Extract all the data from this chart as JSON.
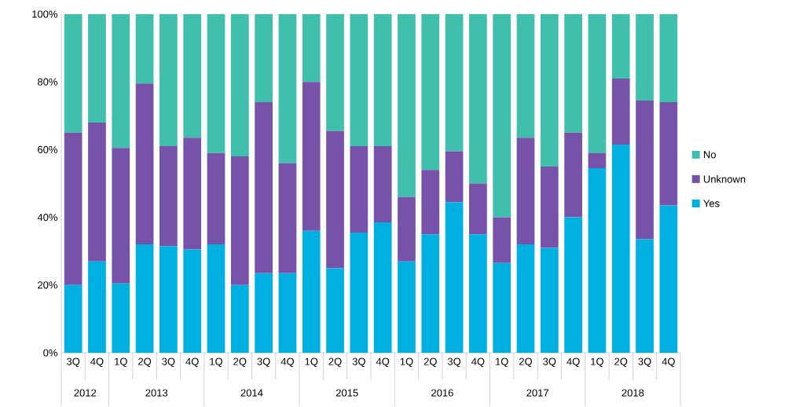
{
  "chart_data": {
    "type": "bar",
    "stacked": true,
    "legend": "right",
    "categories": [
      "3Q",
      "4Q",
      "1Q",
      "2Q",
      "3Q",
      "4Q",
      "1Q",
      "2Q",
      "3Q",
      "4Q",
      "1Q",
      "2Q",
      "3Q",
      "4Q",
      "1Q",
      "2Q",
      "3Q",
      "4Q",
      "1Q",
      "2Q",
      "3Q",
      "4Q",
      "1Q",
      "2Q",
      "3Q",
      "4Q"
    ],
    "annotations": [
      "2012",
      "2013",
      "2014",
      "2015",
      "2016",
      "2017",
      "2018"
    ],
    "ylim": [
      0,
      100
    ],
    "yticks": [
      {
        "value": 0,
        "label": "0%"
      },
      {
        "value": 20,
        "label": "20%"
      },
      {
        "value": 40,
        "label": "40%"
      },
      {
        "value": 60,
        "label": "60%"
      },
      {
        "value": 80,
        "label": "80%"
      },
      {
        "value": 100,
        "label": "100%"
      }
    ],
    "series": [
      {
        "name": "Yes",
        "color": "#00b0e0",
        "values": [
          20,
          27,
          20.5,
          32,
          31.5,
          30.5,
          32,
          20,
          23.5,
          23.5,
          36,
          25,
          35.5,
          38.5,
          27,
          35,
          44.5,
          35,
          26.5,
          32,
          31,
          40,
          54.5,
          61.5,
          33.5,
          43.5
        ]
      },
      {
        "name": "Unknown",
        "color": "#7652a8",
        "values": [
          45,
          41,
          40,
          47.5,
          29.5,
          33,
          27,
          38,
          50.5,
          32.5,
          44,
          40.5,
          25.5,
          22.5,
          19,
          19,
          15,
          15,
          13.5,
          31.5,
          24,
          25,
          4.5,
          19.5,
          41,
          30.5
        ]
      },
      {
        "name": "No",
        "color": "#41bfad",
        "values": [
          35,
          32,
          39.5,
          20.5,
          39,
          36.5,
          41,
          42,
          26,
          44,
          20,
          34.5,
          39,
          39,
          54,
          46,
          40.5,
          50,
          60,
          36.5,
          45,
          35,
          41,
          19,
          25.5,
          26
        ]
      }
    ]
  }
}
